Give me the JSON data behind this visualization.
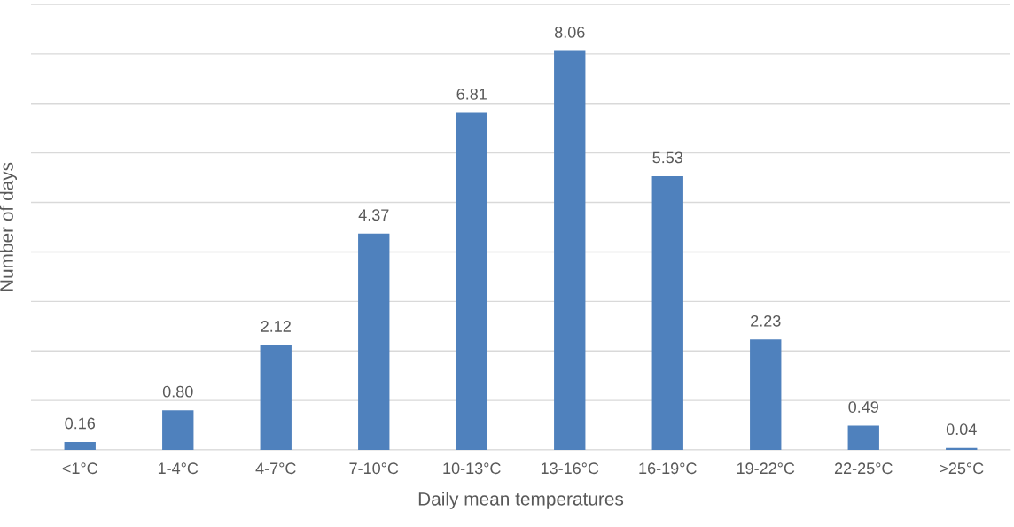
{
  "chart_data": {
    "type": "bar",
    "xlabel": "Daily mean temperatures",
    "ylabel": "Number of days",
    "categories": [
      "<1°C",
      "1-4°C",
      "4-7°C",
      "7-10°C",
      "10-13°C",
      "13-16°C",
      "16-19°C",
      "19-22°C",
      "22-25°C",
      ">25°C"
    ],
    "values": [
      0.16,
      0.8,
      2.12,
      4.37,
      6.81,
      8.06,
      5.53,
      2.23,
      0.49,
      0.04
    ],
    "value_labels": [
      "0.16",
      "0.80",
      "2.12",
      "4.37",
      "6.81",
      "8.06",
      "5.53",
      "2.23",
      "0.49",
      "0.04"
    ],
    "color": "#4f81bd",
    "grid": "y",
    "ylim": [
      0,
      9
    ],
    "yticks": [
      {
        "value": 0,
        "label": null
      },
      {
        "value": 1,
        "label": null
      },
      {
        "value": 2,
        "label": null
      },
      {
        "value": 3,
        "label": null
      },
      {
        "value": 4,
        "label": null
      },
      {
        "value": 5,
        "label": null
      },
      {
        "value": 6,
        "label": null
      },
      {
        "value": 7,
        "label": null
      },
      {
        "value": 8,
        "label": null
      },
      {
        "value": 9,
        "label": null
      }
    ],
    "tick_labels": "x"
  }
}
